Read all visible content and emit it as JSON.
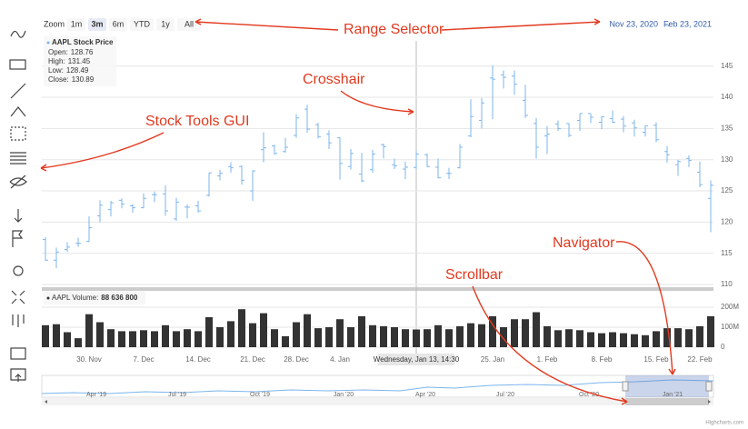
{
  "range_selector": {
    "zoom_label": "Zoom",
    "buttons": [
      "1m",
      "3m",
      "6m",
      "YTD",
      "1y",
      "All"
    ],
    "selected": "3m",
    "from": "Nov 23, 2020",
    "separator": "→",
    "to": "Feb 23, 2021"
  },
  "annotations": {
    "range_selector": "Range Selector",
    "crosshair": "Crosshair",
    "stock_tools": "Stock Tools GUI",
    "navigator": "Navigator",
    "scrollbar": "Scrollbar"
  },
  "crosshair_label": "Wednesday, Jan 13, 14:30",
  "tooltip": {
    "title": "AAPL Stock Price",
    "items": [
      {
        "label": "Open:",
        "value": 128.76
      },
      {
        "label": "High:",
        "value": 131.45
      },
      {
        "label": "Low:",
        "value": 128.49
      },
      {
        "label": "Close:",
        "value": 130.89
      }
    ]
  },
  "volume_legend": {
    "label": "AAPL Volume:",
    "value": 88636800,
    "value_label": "88 636 800"
  },
  "navigator_labels": [
    "Apr '19",
    "Jul '19",
    "Oct '19",
    "Jan '20",
    "Apr '20",
    "Jul '20",
    "Oct '20",
    "Jan '21"
  ],
  "credits": "Highcharts.com",
  "chart_data": [
    {
      "type": "ohlc",
      "categories": [
        null,
        null,
        null,
        null,
        "30. Nov",
        null,
        null,
        null,
        null,
        "7. Dec",
        null,
        null,
        null,
        null,
        "14. Dec",
        null,
        null,
        null,
        null,
        "21. Dec",
        null,
        null,
        null,
        "28. Dec",
        null,
        null,
        null,
        "4. Jan",
        null,
        null,
        null,
        null,
        null,
        null,
        null,
        null,
        null,
        null,
        null,
        null,
        null,
        "25. Jan",
        null,
        null,
        null,
        null,
        "1. Feb",
        null,
        null,
        null,
        null,
        "8. Feb",
        null,
        null,
        null,
        null,
        "15. Feb",
        null,
        null,
        null,
        "22. Feb",
        null
      ],
      "series": [
        {
          "name": "AAPL Stock Price",
          "color": "#7cb5ec",
          "open": [
            117.2,
            113.9,
            115.6,
            116.6,
            116.9,
            121.0,
            122.0,
            123.5,
            122.6,
            122.3,
            124.4,
            124.5,
            120.5,
            122.4,
            122.6,
            124.3,
            127.4,
            128.9,
            128.9,
            125.0,
            131.6,
            132.2,
            131.3,
            133.9,
            138.1,
            135.6,
            134.1,
            133.5,
            128.9,
            127.7,
            128.4,
            132.4,
            129.2,
            128.5,
            128.76,
            130.8,
            128.8,
            127.8,
            128.7,
            133.8,
            136.3,
            143.1,
            143.6,
            143.4,
            139.5,
            135.8,
            133.8,
            135.7,
            135.8,
            136.3,
            137.4,
            136.0,
            136.6,
            136.5,
            135.9,
            134.4,
            135.5,
            131.3,
            129.2,
            130.2,
            128.0,
            123.8
          ],
          "high": [
            117.6,
            115.9,
            116.8,
            117.5,
            120.9,
            123.5,
            123.4,
            123.8,
            122.9,
            124.6,
            124.9,
            125.9,
            123.9,
            122.8,
            123.4,
            127.9,
            128.4,
            129.6,
            129.1,
            128.3,
            134.4,
            132.4,
            133.5,
            137.3,
            138.8,
            135.9,
            134.7,
            133.6,
            131.7,
            131.1,
            131.6,
            132.6,
            130.2,
            129.7,
            131.45,
            131.0,
            130.2,
            128.7,
            132.5,
            139.7,
            139.9,
            145.1,
            144.3,
            144.3,
            141.99,
            136.7,
            135.4,
            136.3,
            135.8,
            137.4,
            137.4,
            136.96,
            137.9,
            136.99,
            136.4,
            135.5,
            136.0,
            132.2,
            130.0,
            130.7,
            129.7,
            126.7
          ],
          "low": [
            113.8,
            112.6,
            115.2,
            116.0,
            116.8,
            120.0,
            120.9,
            122.2,
            121.5,
            122.2,
            123.2,
            121.0,
            120.2,
            120.6,
            121.5,
            124.1,
            126.7,
            127.9,
            126.0,
            123.4,
            129.6,
            130.8,
            131.1,
            133.5,
            134.3,
            133.4,
            131.7,
            126.8,
            128.4,
            126.4,
            127.9,
            130.2,
            128.5,
            126.9,
            128.49,
            128.8,
            127.0,
            126.9,
            128.6,
            133.6,
            135.0,
            136.5,
            141.4,
            140.4,
            136.7,
            130.2,
            130.9,
            134.6,
            133.6,
            134.6,
            135.9,
            134.9,
            135.9,
            134.4,
            133.7,
            133.7,
            132.8,
            129.5,
            127.4,
            128.8,
            125.6,
            118.4
          ],
          "close": [
            113.9,
            115.2,
            116.0,
            116.6,
            119.1,
            122.7,
            123.1,
            122.9,
            122.3,
            123.8,
            124.4,
            121.8,
            123.2,
            122.4,
            121.8,
            127.9,
            127.8,
            128.7,
            126.7,
            128.2,
            131.9,
            131.0,
            132.0,
            136.7,
            134.9,
            133.7,
            132.7,
            129.4,
            131.0,
            126.6,
            130.9,
            132.1,
            129.0,
            128.8,
            130.89,
            128.9,
            127.1,
            127.8,
            132.0,
            136.9,
            139.1,
            142.9,
            143.2,
            142.1,
            137.1,
            132.0,
            134.1,
            135.0,
            133.9,
            137.4,
            136.8,
            136.9,
            136.0,
            135.4,
            135.1,
            135.4,
            133.2,
            130.8,
            129.7,
            129.9,
            126.0,
            125.9
          ]
        }
      ],
      "ylim": [
        110,
        148.6
      ],
      "yticks": [
        110,
        115,
        120,
        125,
        130,
        135,
        140,
        145
      ],
      "grid": true
    },
    {
      "type": "column",
      "series": [
        {
          "name": "AAPL Volume",
          "color": "#333333",
          "values": [
            110,
            115,
            75,
            45,
            165,
            125,
            90,
            80,
            80,
            85,
            80,
            110,
            80,
            90,
            80,
            150,
            100,
            130,
            190,
            120,
            170,
            90,
            55,
            125,
            165,
            95,
            100,
            140,
            100,
            155,
            110,
            105,
            100,
            90,
            88.6368,
            90,
            110,
            90,
            105,
            120,
            115,
            155,
            100,
            140,
            140,
            175,
            105,
            85,
            90,
            85,
            75,
            70,
            75,
            70,
            65,
            60,
            80,
            95,
            95,
            90,
            105,
            155
          ]
        }
      ],
      "ylim": [
        0,
        200
      ],
      "yticks": [
        0,
        {
          "value": 100,
          "label": "100M"
        },
        {
          "value": 200,
          "label": "200M"
        }
      ],
      "grid": true
    }
  ]
}
